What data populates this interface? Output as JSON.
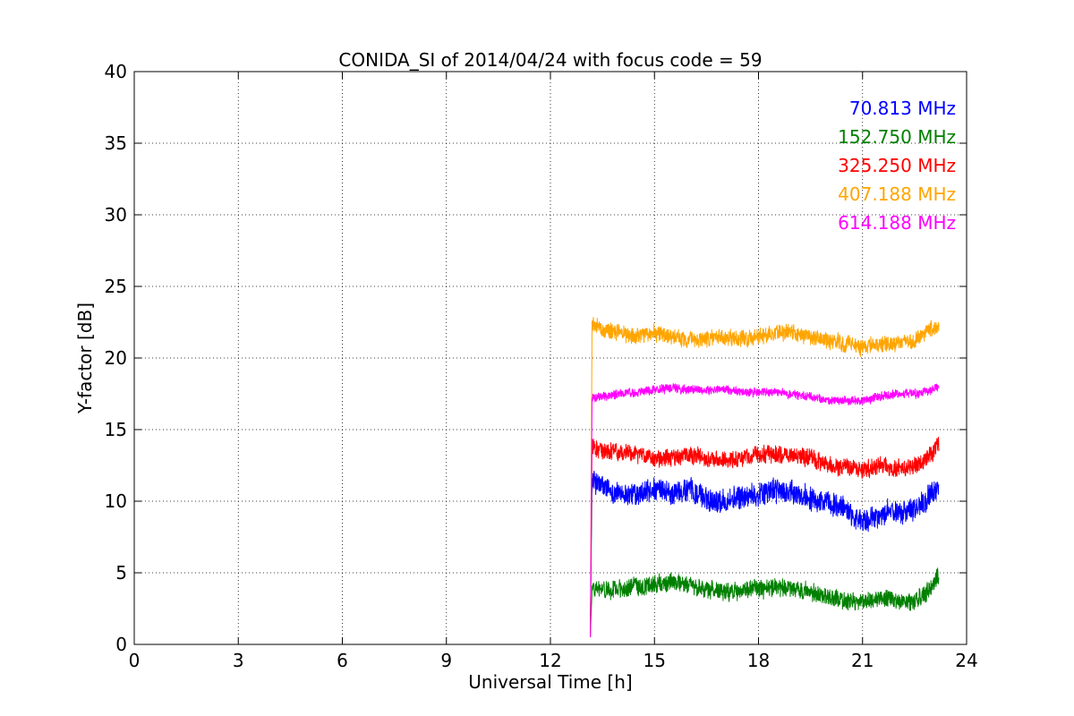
{
  "chart_data": {
    "type": "line",
    "title": "CONIDA_SI of 2014/04/24 with focus code = 59",
    "xlabel": "Universal Time [h]",
    "ylabel": "Y-factor [dB]",
    "xlim": [
      0,
      24
    ],
    "ylim": [
      0,
      40
    ],
    "xticks": [
      0,
      3,
      6,
      9,
      12,
      15,
      18,
      21,
      24
    ],
    "yticks": [
      0,
      5,
      10,
      15,
      20,
      25,
      30,
      35,
      40
    ],
    "xtick_labels": [
      "0",
      "3",
      "6",
      "9",
      "12",
      "15",
      "18",
      "21",
      "24"
    ],
    "ytick_labels": [
      "0",
      "5",
      "10",
      "15",
      "20",
      "25",
      "30",
      "35",
      "40"
    ],
    "grid": true,
    "legend_position": "top-right",
    "series": [
      {
        "name": "70.813 MHz",
        "color": "#0000ff",
        "noise": 0.8,
        "x": [
          13.15,
          13.2,
          13.5,
          14.0,
          14.5,
          15.0,
          15.5,
          16.0,
          16.5,
          17.0,
          17.5,
          18.0,
          18.5,
          19.0,
          19.5,
          20.0,
          20.5,
          21.0,
          21.5,
          22.0,
          22.5,
          23.0,
          23.2
        ],
        "y": [
          0.5,
          11.5,
          11.0,
          10.5,
          10.5,
          10.8,
          10.5,
          10.8,
          10.2,
          10.0,
          10.3,
          10.5,
          10.8,
          10.5,
          10.3,
          9.8,
          9.5,
          8.5,
          9.0,
          9.3,
          9.5,
          10.5,
          11.0
        ]
      },
      {
        "name": "152.750 MHz",
        "color": "#008000",
        "noise": 0.6,
        "x": [
          13.15,
          13.2,
          13.5,
          14.0,
          14.5,
          15.0,
          15.5,
          16.0,
          16.5,
          17.0,
          17.5,
          18.0,
          18.5,
          19.0,
          19.5,
          20.0,
          20.5,
          21.0,
          21.5,
          22.0,
          22.5,
          23.0,
          23.2
        ],
        "y": [
          0.5,
          3.8,
          3.8,
          3.9,
          4.0,
          4.2,
          4.3,
          4.2,
          3.8,
          3.6,
          3.7,
          3.9,
          4.0,
          3.8,
          3.7,
          3.3,
          3.0,
          3.0,
          3.2,
          3.0,
          3.0,
          4.0,
          4.8
        ]
      },
      {
        "name": "325.250 MHz",
        "color": "#ff0000",
        "noise": 0.6,
        "x": [
          13.15,
          13.2,
          13.5,
          14.0,
          14.5,
          15.0,
          15.5,
          16.0,
          16.5,
          17.0,
          17.5,
          18.0,
          18.5,
          19.0,
          19.5,
          20.0,
          20.5,
          21.0,
          21.5,
          22.0,
          22.5,
          23.0,
          23.2
        ],
        "y": [
          0.5,
          13.8,
          13.5,
          13.5,
          13.3,
          13.0,
          13.0,
          13.2,
          13.0,
          12.8,
          13.0,
          13.2,
          13.3,
          13.2,
          13.0,
          12.5,
          12.3,
          12.2,
          12.5,
          12.3,
          12.5,
          13.2,
          14.0
        ]
      },
      {
        "name": "407.188 MHz",
        "color": "#ffa500",
        "noise": 0.55,
        "x": [
          13.15,
          13.2,
          13.5,
          14.0,
          14.5,
          15.0,
          15.5,
          16.0,
          16.5,
          17.0,
          17.5,
          18.0,
          18.5,
          19.0,
          19.5,
          20.0,
          20.5,
          21.0,
          21.5,
          22.0,
          22.5,
          23.0,
          23.2
        ],
        "y": [
          0.5,
          22.3,
          22.0,
          21.8,
          21.5,
          21.8,
          21.5,
          21.2,
          21.3,
          21.5,
          21.3,
          21.5,
          21.8,
          21.8,
          21.5,
          21.2,
          21.0,
          20.8,
          21.0,
          21.0,
          21.2,
          22.0,
          22.3
        ]
      },
      {
        "name": "614.188 MHz",
        "color": "#ff00ff",
        "noise": 0.3,
        "x": [
          13.15,
          13.2,
          13.5,
          14.0,
          14.5,
          15.0,
          15.5,
          16.0,
          16.5,
          17.0,
          17.5,
          18.0,
          18.5,
          19.0,
          19.5,
          20.0,
          20.5,
          21.0,
          21.5,
          22.0,
          22.5,
          23.0,
          23.2
        ],
        "y": [
          0.5,
          17.2,
          17.3,
          17.5,
          17.6,
          17.8,
          17.9,
          17.8,
          17.7,
          17.8,
          17.6,
          17.6,
          17.6,
          17.5,
          17.3,
          17.0,
          17.0,
          17.0,
          17.3,
          17.5,
          17.5,
          17.8,
          18.0
        ]
      }
    ]
  }
}
